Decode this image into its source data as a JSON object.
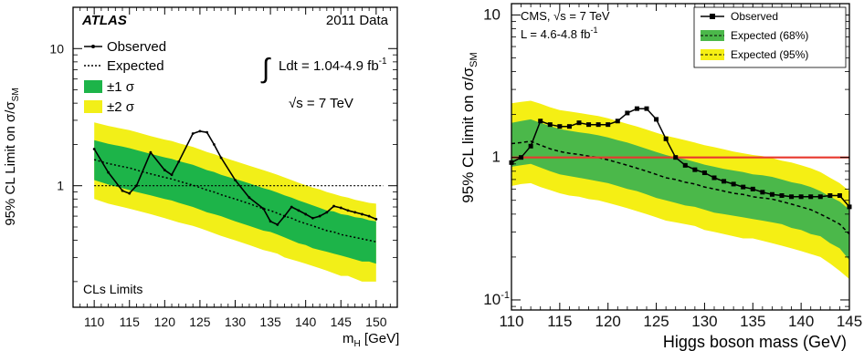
{
  "chart_data": [
    {
      "id": "atlas",
      "type": "line",
      "logY": true,
      "xlim": [
        107,
        153
      ],
      "ylim": [
        0.13,
        20
      ],
      "xticks": [
        110,
        115,
        120,
        125,
        130,
        135,
        140,
        145,
        150
      ],
      "yticks": [
        {
          "v": 1,
          "label": "1"
        },
        {
          "v": 10,
          "label": "10"
        }
      ],
      "ylabel_prefix": "95% CL Limit on ",
      "ylabel_sigma": "σ/σ",
      "ylabel_sub": "SM",
      "xlabel_main": "m",
      "xlabel_sub": "H",
      "xlabel_unit": " [GeV]",
      "brand": "ATLAS",
      "data_label": "2011 Data",
      "lumi_integral": "∫",
      "lumi_text": "Ldt = 1.04-4.9 fb",
      "lumi_exp": "-1",
      "energy_root": "√",
      "energy_text": "s = 7 TeV",
      "method_label": "CLs Limits",
      "legend": {
        "observed": "Observed",
        "expected": "Expected",
        "one_sigma": "±1 σ",
        "two_sigma": "±2 σ"
      },
      "colors": {
        "band1": "#1db449",
        "band2": "#f2ef18",
        "observed": "#000000",
        "expected": "#000000",
        "reference": "#000000"
      },
      "x": [
        110,
        112,
        114,
        115,
        116,
        118,
        120,
        121,
        122,
        124,
        125,
        126,
        127,
        128,
        130,
        132,
        134,
        135,
        136,
        137,
        138,
        139,
        140,
        141,
        142,
        143,
        144,
        145,
        146,
        147,
        148,
        149,
        150
      ],
      "observed": [
        1.85,
        1.25,
        0.92,
        0.88,
        1.0,
        1.75,
        1.3,
        1.2,
        1.5,
        2.4,
        2.5,
        2.45,
        2.0,
        1.6,
        1.1,
        0.82,
        0.68,
        0.55,
        0.52,
        0.6,
        0.7,
        0.66,
        0.62,
        0.58,
        0.6,
        0.64,
        0.71,
        0.69,
        0.66,
        0.64,
        0.62,
        0.6,
        0.57
      ],
      "expected": [
        1.55,
        1.45,
        1.38,
        1.35,
        1.3,
        1.22,
        1.15,
        1.12,
        1.08,
        1.01,
        0.97,
        0.93,
        0.9,
        0.86,
        0.8,
        0.74,
        0.68,
        0.66,
        0.63,
        0.6,
        0.58,
        0.55,
        0.53,
        0.51,
        0.49,
        0.47,
        0.46,
        0.44,
        0.43,
        0.42,
        0.41,
        0.4,
        0.39
      ],
      "band1_low": [
        1.1,
        1.02,
        0.96,
        0.93,
        0.9,
        0.85,
        0.8,
        0.78,
        0.75,
        0.7,
        0.67,
        0.64,
        0.62,
        0.6,
        0.55,
        0.51,
        0.47,
        0.46,
        0.44,
        0.42,
        0.4,
        0.38,
        0.37,
        0.35,
        0.34,
        0.33,
        0.32,
        0.31,
        0.3,
        0.29,
        0.28,
        0.28,
        0.27
      ],
      "band1_high": [
        2.15,
        2.02,
        1.93,
        1.88,
        1.82,
        1.71,
        1.61,
        1.57,
        1.51,
        1.42,
        1.36,
        1.3,
        1.26,
        1.2,
        1.12,
        1.04,
        0.96,
        0.93,
        0.89,
        0.85,
        0.82,
        0.78,
        0.75,
        0.72,
        0.69,
        0.66,
        0.65,
        0.62,
        0.61,
        0.59,
        0.58,
        0.56,
        0.55
      ],
      "band2_low": [
        0.8,
        0.74,
        0.7,
        0.68,
        0.66,
        0.62,
        0.58,
        0.56,
        0.54,
        0.51,
        0.49,
        0.47,
        0.45,
        0.43,
        0.4,
        0.37,
        0.34,
        0.33,
        0.32,
        0.3,
        0.29,
        0.28,
        0.27,
        0.26,
        0.25,
        0.24,
        0.23,
        0.22,
        0.22,
        0.21,
        0.2,
        0.2,
        0.2
      ],
      "band2_high": [
        2.9,
        2.73,
        2.6,
        2.54,
        2.46,
        2.3,
        2.17,
        2.12,
        2.04,
        1.92,
        1.84,
        1.76,
        1.7,
        1.63,
        1.51,
        1.4,
        1.3,
        1.25,
        1.2,
        1.15,
        1.1,
        1.05,
        1.01,
        0.97,
        0.94,
        0.9,
        0.87,
        0.84,
        0.82,
        0.79,
        0.77,
        0.75,
        0.74
      ]
    },
    {
      "id": "cms",
      "type": "line",
      "logY": true,
      "xlim": [
        110,
        145
      ],
      "ylim": [
        0.085,
        12
      ],
      "xticks": [
        110,
        115,
        120,
        125,
        130,
        135,
        140,
        145
      ],
      "yticks": [
        {
          "v": 0.1,
          "label": "10",
          "sup": "-1"
        },
        {
          "v": 1,
          "label": "1"
        },
        {
          "v": 10,
          "label": "10"
        }
      ],
      "ylabel_prefix": "95% CL limit on ",
      "ylabel_sigma": "σ/σ",
      "ylabel_sub": "SM",
      "xlabel_main": "Higgs boson mass (GeV)",
      "info_line1_a": "CMS, ",
      "info_line1_root": "√",
      "info_line1_b": "s = 7 TeV",
      "info_line2": "L = 4.6-4.8 fb",
      "info_line2_exp": "-1",
      "legend": {
        "observed": "Observed",
        "expected68": "Expected (68%)",
        "expected95": "Expected (95%)"
      },
      "colors": {
        "band1": "#4bb84a",
        "band2": "#f5ef14",
        "observed": "#000000",
        "expected": "#000000",
        "reference": "#e8392e"
      },
      "x": [
        110,
        111,
        112,
        113,
        114,
        115,
        116,
        117,
        118,
        119,
        120,
        121,
        122,
        123,
        124,
        125,
        126,
        127,
        128,
        129,
        130,
        131,
        132,
        133,
        134,
        135,
        136,
        137,
        138,
        139,
        140,
        141,
        142,
        143,
        144,
        145
      ],
      "observed": [
        0.92,
        1.0,
        1.2,
        1.8,
        1.7,
        1.65,
        1.65,
        1.75,
        1.7,
        1.7,
        1.7,
        1.8,
        2.05,
        2.2,
        2.2,
        1.85,
        1.35,
        1.0,
        0.88,
        0.82,
        0.78,
        0.72,
        0.68,
        0.65,
        0.62,
        0.6,
        0.57,
        0.55,
        0.54,
        0.53,
        0.53,
        0.53,
        0.53,
        0.54,
        0.54,
        0.45
      ],
      "expected": [
        1.25,
        1.27,
        1.3,
        1.22,
        1.15,
        1.1,
        1.07,
        1.05,
        1.02,
        1.0,
        0.96,
        0.92,
        0.88,
        0.84,
        0.8,
        0.76,
        0.72,
        0.7,
        0.67,
        0.65,
        0.62,
        0.6,
        0.58,
        0.56,
        0.55,
        0.53,
        0.52,
        0.51,
        0.49,
        0.47,
        0.45,
        0.43,
        0.4,
        0.37,
        0.34,
        0.29
      ],
      "band1_low": [
        0.86,
        0.88,
        0.9,
        0.85,
        0.8,
        0.76,
        0.74,
        0.72,
        0.7,
        0.68,
        0.66,
        0.63,
        0.6,
        0.58,
        0.55,
        0.52,
        0.5,
        0.48,
        0.46,
        0.45,
        0.43,
        0.41,
        0.4,
        0.39,
        0.38,
        0.37,
        0.36,
        0.35,
        0.34,
        0.32,
        0.31,
        0.29,
        0.28,
        0.25,
        0.23,
        0.19
      ],
      "band1_high": [
        1.75,
        1.8,
        1.85,
        1.75,
        1.66,
        1.58,
        1.54,
        1.5,
        1.47,
        1.43,
        1.38,
        1.32,
        1.27,
        1.21,
        1.15,
        1.09,
        1.04,
        1.0,
        0.97,
        0.93,
        0.89,
        0.86,
        0.83,
        0.81,
        0.79,
        0.76,
        0.75,
        0.73,
        0.7,
        0.67,
        0.65,
        0.62,
        0.58,
        0.53,
        0.49,
        0.43
      ],
      "band2_low": [
        0.63,
        0.65,
        0.66,
        0.62,
        0.59,
        0.56,
        0.54,
        0.53,
        0.51,
        0.5,
        0.48,
        0.46,
        0.44,
        0.42,
        0.4,
        0.38,
        0.36,
        0.35,
        0.34,
        0.33,
        0.31,
        0.3,
        0.29,
        0.28,
        0.27,
        0.27,
        0.26,
        0.25,
        0.24,
        0.23,
        0.22,
        0.21,
        0.2,
        0.18,
        0.16,
        0.14
      ],
      "band2_high": [
        2.4,
        2.45,
        2.5,
        2.38,
        2.25,
        2.15,
        2.1,
        2.05,
        2.0,
        1.95,
        1.88,
        1.8,
        1.72,
        1.65,
        1.57,
        1.49,
        1.42,
        1.37,
        1.32,
        1.27,
        1.22,
        1.18,
        1.14,
        1.1,
        1.07,
        1.04,
        1.02,
        0.99,
        0.95,
        0.92,
        0.88,
        0.84,
        0.79,
        0.72,
        0.66,
        0.58
      ]
    }
  ]
}
